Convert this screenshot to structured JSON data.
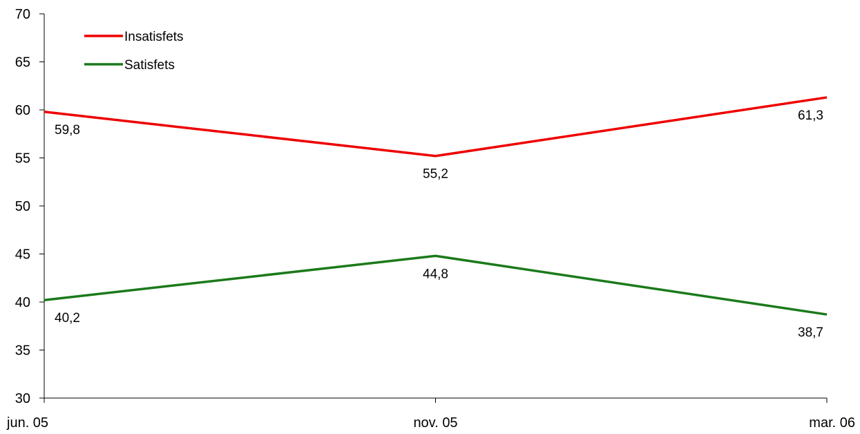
{
  "chart_data": {
    "type": "line",
    "categories": [
      "jun. 05",
      "nov. 05",
      "mar. 06"
    ],
    "series": [
      {
        "name": "Insatisfets",
        "color": "#ee0000",
        "values": [
          59.8,
          55.2,
          61.3
        ],
        "labels": [
          "59,8",
          "55,2",
          "61,3"
        ]
      },
      {
        "name": "Satisfets",
        "color": "#1a7a1a",
        "values": [
          40.2,
          44.8,
          38.7
        ],
        "labels": [
          "40,2",
          "44,8",
          "38,7"
        ]
      }
    ],
    "ylim": [
      30,
      70
    ],
    "yticks": [
      30,
      35,
      40,
      45,
      50,
      55,
      60,
      65,
      70
    ],
    "ytick_labels": [
      "30",
      "35",
      "40",
      "45",
      "50",
      "55",
      "60",
      "65",
      "70"
    ],
    "grid": false,
    "legend_position": "top-left"
  }
}
